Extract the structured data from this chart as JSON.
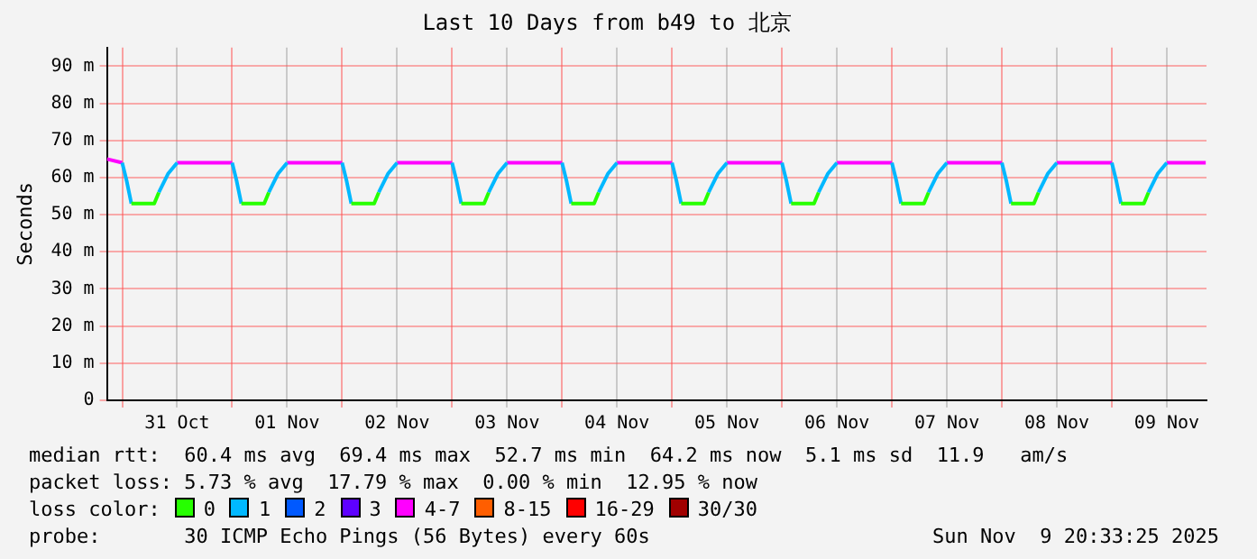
{
  "chart_data": {
    "type": "line",
    "title": "Last 10 Days from b49 to 北京",
    "ylabel": "Seconds",
    "legend_title": "loss color:",
    "legend": "bottom",
    "grid": true,
    "marker": "none",
    "line_style": "solid",
    "x": [
      "2025-10-30T20:40",
      "2025-10-31T00:00",
      "2025-10-31T01:00",
      "2025-10-31T02:00",
      "2025-10-31T07:00",
      "2025-10-31T08:00",
      "2025-10-31T10:00",
      "2025-10-31T12:00",
      "2025-10-31T18:00",
      "2025-11-01T00:00",
      "2025-11-01T01:00",
      "2025-11-01T02:00",
      "2025-11-01T07:00",
      "2025-11-01T08:00",
      "2025-11-01T10:00",
      "2025-11-01T12:00",
      "2025-11-01T18:00",
      "2025-11-02T00:00",
      "2025-11-02T01:00",
      "2025-11-02T02:00",
      "2025-11-02T07:00",
      "2025-11-02T08:00",
      "2025-11-02T10:00",
      "2025-11-02T12:00",
      "2025-11-02T18:00",
      "2025-11-03T00:00",
      "2025-11-03T01:00",
      "2025-11-03T02:00",
      "2025-11-03T07:00",
      "2025-11-03T08:00",
      "2025-11-03T10:00",
      "2025-11-03T12:00",
      "2025-11-03T18:00",
      "2025-11-04T00:00",
      "2025-11-04T01:00",
      "2025-11-04T02:00",
      "2025-11-04T07:00",
      "2025-11-04T08:00",
      "2025-11-04T10:00",
      "2025-11-04T12:00",
      "2025-11-04T18:00",
      "2025-11-05T00:00",
      "2025-11-05T01:00",
      "2025-11-05T02:00",
      "2025-11-05T07:00",
      "2025-11-05T08:00",
      "2025-11-05T10:00",
      "2025-11-05T12:00",
      "2025-11-05T18:00",
      "2025-11-06T00:00",
      "2025-11-06T01:00",
      "2025-11-06T02:00",
      "2025-11-06T07:00",
      "2025-11-06T08:00",
      "2025-11-06T10:00",
      "2025-11-06T12:00",
      "2025-11-06T18:00",
      "2025-11-07T00:00",
      "2025-11-07T01:00",
      "2025-11-07T02:00",
      "2025-11-07T07:00",
      "2025-11-07T08:00",
      "2025-11-07T10:00",
      "2025-11-07T12:00",
      "2025-11-07T18:00",
      "2025-11-08T00:00",
      "2025-11-08T01:00",
      "2025-11-08T02:00",
      "2025-11-08T07:00",
      "2025-11-08T08:00",
      "2025-11-08T10:00",
      "2025-11-08T12:00",
      "2025-11-08T18:00",
      "2025-11-09T00:00",
      "2025-11-09T01:00",
      "2025-11-09T02:00",
      "2025-11-09T07:00",
      "2025-11-09T08:00",
      "2025-11-09T10:00",
      "2025-11-09T12:00",
      "2025-11-09T18:00",
      "2025-11-09T20:30"
    ],
    "xlim": [
      "2025-10-30T20:40",
      "2025-11-09T20:40"
    ],
    "xticks": [
      {
        "value": "2025-10-31T00:00",
        "label": null
      },
      {
        "value": "2025-10-31T12:00",
        "label": "31 Oct"
      },
      {
        "value": "2025-11-01T00:00",
        "label": null
      },
      {
        "value": "2025-11-01T12:00",
        "label": "01 Nov"
      },
      {
        "value": "2025-11-02T00:00",
        "label": null
      },
      {
        "value": "2025-11-02T12:00",
        "label": "02 Nov"
      },
      {
        "value": "2025-11-03T00:00",
        "label": null
      },
      {
        "value": "2025-11-03T12:00",
        "label": "03 Nov"
      },
      {
        "value": "2025-11-04T00:00",
        "label": null
      },
      {
        "value": "2025-11-04T12:00",
        "label": "04 Nov"
      },
      {
        "value": "2025-11-05T00:00",
        "label": null
      },
      {
        "value": "2025-11-05T12:00",
        "label": "05 Nov"
      },
      {
        "value": "2025-11-06T00:00",
        "label": null
      },
      {
        "value": "2025-11-06T12:00",
        "label": "06 Nov"
      },
      {
        "value": "2025-11-07T00:00",
        "label": null
      },
      {
        "value": "2025-11-07T12:00",
        "label": "07 Nov"
      },
      {
        "value": "2025-11-08T00:00",
        "label": null
      },
      {
        "value": "2025-11-08T12:00",
        "label": "08 Nov"
      },
      {
        "value": "2025-11-09T00:00",
        "label": null
      },
      {
        "value": "2025-11-09T12:00",
        "label": "09 Nov"
      }
    ],
    "ylim": [
      0,
      95
    ],
    "yticks": [
      0,
      {
        "value": 10,
        "label": "10 m"
      },
      {
        "value": 20,
        "label": "20 m"
      },
      {
        "value": 30,
        "label": "30 m"
      },
      {
        "value": 40,
        "label": "40 m"
      },
      {
        "value": 50,
        "label": "50 m"
      },
      {
        "value": 60,
        "label": "60 m"
      },
      {
        "value": 70,
        "label": "70 m"
      },
      {
        "value": 80,
        "label": "80 m"
      },
      {
        "value": 90,
        "label": "90 m"
      }
    ],
    "series": [
      {
        "name": "0",
        "color": "#26ff00",
        "values": [
          null,
          null,
          null,
          53,
          53,
          56,
          null,
          null,
          null,
          null,
          null,
          53,
          53,
          56,
          null,
          null,
          null,
          null,
          null,
          53,
          53,
          56,
          null,
          null,
          null,
          null,
          null,
          53,
          53,
          56,
          null,
          null,
          null,
          null,
          null,
          53,
          53,
          56,
          null,
          null,
          null,
          null,
          null,
          53,
          53,
          56,
          null,
          null,
          null,
          null,
          null,
          53,
          53,
          56,
          null,
          null,
          null,
          null,
          null,
          53,
          53,
          56,
          null,
          null,
          null,
          null,
          null,
          53,
          53,
          56,
          null,
          null,
          null,
          null,
          null,
          53,
          53,
          56,
          null,
          null,
          null,
          null
        ]
      },
      {
        "name": "1",
        "color": "#00b8ff",
        "values": [
          null,
          64,
          59,
          53,
          null,
          56,
          61,
          64,
          null,
          64,
          59,
          53,
          null,
          56,
          61,
          64,
          null,
          64,
          59,
          53,
          null,
          56,
          61,
          64,
          null,
          64,
          59,
          53,
          null,
          56,
          61,
          64,
          null,
          64,
          59,
          53,
          null,
          56,
          61,
          64,
          null,
          64,
          59,
          53,
          null,
          56,
          61,
          64,
          null,
          64,
          59,
          53,
          null,
          56,
          61,
          64,
          null,
          64,
          59,
          53,
          null,
          56,
          61,
          64,
          null,
          64,
          59,
          53,
          null,
          56,
          61,
          64,
          null,
          64,
          59,
          53,
          null,
          56,
          61,
          64,
          null,
          null
        ]
      },
      {
        "name": "2",
        "color": "#0059ff",
        "values": [
          null,
          null,
          null,
          null,
          null,
          null,
          null,
          null,
          null,
          null,
          null,
          null,
          null,
          null,
          null,
          null,
          null,
          null,
          null,
          null,
          null,
          null,
          null,
          null,
          null,
          null,
          null,
          null,
          null,
          null,
          null,
          null,
          null,
          null,
          null,
          null,
          null,
          null,
          null,
          null,
          null,
          null,
          null,
          null,
          null,
          null,
          null,
          null,
          null,
          null,
          null,
          null,
          null,
          null,
          null,
          null,
          null,
          null,
          null,
          null,
          null,
          null,
          null,
          null,
          null,
          null,
          null,
          null,
          null,
          null,
          null,
          null,
          null,
          null,
          null,
          null,
          null,
          null,
          null,
          null,
          null,
          null
        ]
      },
      {
        "name": "3",
        "color": "#5e00ff",
        "values": [
          null,
          null,
          null,
          null,
          null,
          null,
          null,
          null,
          null,
          null,
          null,
          null,
          null,
          null,
          null,
          null,
          null,
          null,
          null,
          null,
          null,
          null,
          null,
          null,
          null,
          null,
          null,
          null,
          null,
          null,
          null,
          null,
          null,
          null,
          null,
          null,
          null,
          null,
          null,
          null,
          null,
          null,
          null,
          null,
          null,
          null,
          null,
          null,
          null,
          null,
          null,
          null,
          null,
          null,
          null,
          null,
          null,
          null,
          null,
          null,
          null,
          null,
          null,
          null,
          null,
          null,
          null,
          null,
          null,
          null,
          null,
          null,
          null,
          null,
          null,
          null,
          null,
          null,
          null,
          null,
          null,
          null
        ]
      },
      {
        "name": "4-7",
        "color": "#ff00ff",
        "values": [
          65,
          64,
          null,
          null,
          null,
          null,
          null,
          64,
          64,
          64,
          null,
          null,
          null,
          null,
          null,
          64,
          64,
          64,
          null,
          null,
          null,
          null,
          null,
          64,
          64,
          64,
          null,
          null,
          null,
          null,
          null,
          64,
          64,
          64,
          null,
          null,
          null,
          null,
          null,
          64,
          64,
          64,
          null,
          null,
          null,
          null,
          null,
          64,
          64,
          64,
          null,
          null,
          null,
          null,
          null,
          64,
          64,
          64,
          null,
          null,
          null,
          null,
          null,
          64,
          64,
          64,
          null,
          null,
          null,
          null,
          null,
          64,
          64,
          64,
          null,
          null,
          null,
          null,
          null,
          64,
          64,
          64
        ]
      },
      {
        "name": "8-15",
        "color": "#ff5e00",
        "values": [
          null,
          null,
          null,
          null,
          null,
          null,
          null,
          null,
          null,
          null,
          null,
          null,
          null,
          null,
          null,
          null,
          null,
          null,
          null,
          null,
          null,
          null,
          null,
          null,
          null,
          null,
          null,
          null,
          null,
          null,
          null,
          null,
          null,
          null,
          null,
          null,
          null,
          null,
          null,
          null,
          null,
          null,
          null,
          null,
          null,
          null,
          null,
          null,
          null,
          null,
          null,
          null,
          null,
          null,
          null,
          null,
          null,
          null,
          null,
          null,
          null,
          null,
          null,
          null,
          null,
          null,
          null,
          null,
          null,
          null,
          null,
          null,
          null,
          null,
          null,
          null,
          null,
          null,
          null,
          null,
          null,
          null
        ]
      },
      {
        "name": "16-29",
        "color": "#ff0000",
        "values": [
          null,
          null,
          null,
          null,
          null,
          null,
          null,
          null,
          null,
          null,
          null,
          null,
          null,
          null,
          null,
          null,
          null,
          null,
          null,
          null,
          null,
          null,
          null,
          null,
          null,
          null,
          null,
          null,
          null,
          null,
          null,
          null,
          null,
          null,
          null,
          null,
          null,
          null,
          null,
          null,
          null,
          null,
          null,
          null,
          null,
          null,
          null,
          null,
          null,
          null,
          null,
          null,
          null,
          null,
          null,
          null,
          null,
          null,
          null,
          null,
          null,
          null,
          null,
          null,
          null,
          null,
          null,
          null,
          null,
          null,
          null,
          null,
          null,
          null,
          null,
          null,
          null,
          null,
          null,
          null,
          null,
          null
        ]
      },
      {
        "name": "30/30",
        "color": "#a10000",
        "values": [
          null,
          null,
          null,
          null,
          null,
          null,
          null,
          null,
          null,
          null,
          null,
          null,
          null,
          null,
          null,
          null,
          null,
          null,
          null,
          null,
          null,
          null,
          null,
          null,
          null,
          null,
          null,
          null,
          null,
          null,
          null,
          null,
          null,
          null,
          null,
          null,
          null,
          null,
          null,
          null,
          null,
          null,
          null,
          null,
          null,
          null,
          null,
          null,
          null,
          null,
          null,
          null,
          null,
          null,
          null,
          null,
          null,
          null,
          null,
          null,
          null,
          null,
          null,
          null,
          null,
          null,
          null,
          null,
          null,
          null,
          null,
          null,
          null,
          null,
          null,
          null,
          null,
          null,
          null,
          null,
          null,
          null
        ]
      }
    ],
    "annotations": [
      "median rtt:  60.4 ms avg  69.4 ms max  52.7 ms min  64.2 ms now  5.1 ms sd  11.9   am/s",
      "packet loss: 5.73 % avg  17.79 % max  0.00 % min  12.95 % now",
      "probe:       30 ICMP Echo Pings (56 Bytes) every 60s",
      "Sun Nov  9 20:33:25 2025"
    ]
  }
}
